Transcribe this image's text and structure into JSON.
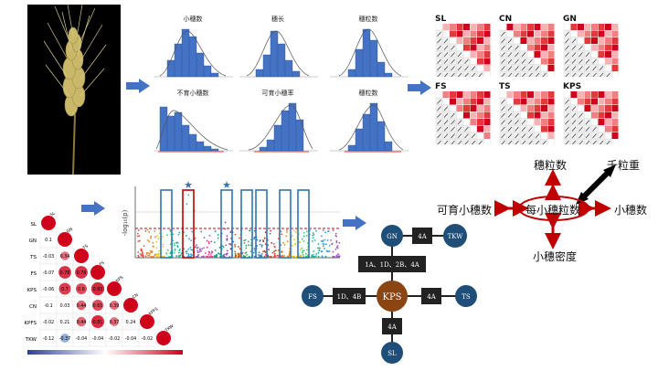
{
  "histograms": [
    {
      "title": "小穗数"
    },
    {
      "title": "穗长"
    },
    {
      "title": "穗粒数"
    },
    {
      "title": "不育小穗数"
    },
    {
      "title": "可育小穗率"
    },
    {
      "title": "穗粒数"
    }
  ],
  "corr_panels": [
    {
      "label": "SL"
    },
    {
      "label": "CN"
    },
    {
      "label": "GN"
    },
    {
      "label": "FS"
    },
    {
      "label": "TS"
    },
    {
      "label": "KPS"
    }
  ],
  "trait_network": {
    "center": "每小穗粒数",
    "top": "穗粒数",
    "top_right": "千粒重",
    "left": "可育小穗数",
    "right": "小穗数",
    "bottom": "小穗密度"
  },
  "corr_matrix": {
    "labels": [
      "SL",
      "GN",
      "TS",
      "FS",
      "KPS",
      "CN",
      "KPFS",
      "TKW"
    ],
    "values": [
      [
        "0.1"
      ],
      [
        "-0.03",
        "0.34"
      ],
      [
        "-0.07",
        "0.78",
        "0.78"
      ],
      [
        "-0.06",
        "0.7",
        "0.6",
        "0.83"
      ],
      [
        "-0.1",
        "0.03",
        "0.44",
        "0.61",
        "0.39"
      ],
      [
        "-0.02",
        "0.21",
        "0.44",
        "0.81",
        "0.37",
        "0.24"
      ],
      [
        "-0.12",
        "-0.37",
        "-0.04",
        "-0.04",
        "-0.02",
        "-0.04",
        "-0.02"
      ]
    ],
    "scale": [
      "-1",
      "-0.8",
      "-0.6",
      "-0.4",
      "-0.2",
      "0",
      "0.2",
      "0.4",
      "0.6",
      "0.8",
      "1"
    ]
  },
  "manhattan": {
    "ylabel": "-log₁₀(p)",
    "stars": [
      "★",
      "★"
    ]
  },
  "chromosome_network": {
    "nodes": {
      "gn": "GN",
      "tkw": "TKW",
      "kps": "KPS",
      "fs": "FS",
      "ts": "TS",
      "sl": "SL"
    },
    "edge_labels": {
      "gn_tkw": "4A",
      "gn_kps": "1A、1D、2B、4A",
      "fs_kps": "1D、4B",
      "kps_ts": "4A",
      "kps_sl": "4A"
    }
  },
  "colors": {
    "arrow_blue": "#4472c4",
    "hist_bar": "#4472c4",
    "node_blue": "#1f4e79",
    "node_center": "#8b4513",
    "trait_red": "#c00000",
    "corr_red": "#d0021b"
  }
}
